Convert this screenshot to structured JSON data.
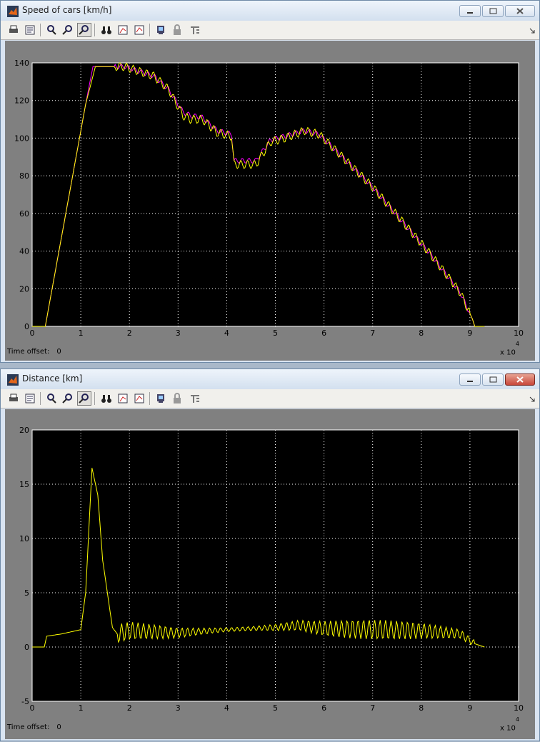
{
  "windows": [
    {
      "title": "Speed of cars [km/h]",
      "time_offset_label": "Time offset:",
      "time_offset_value": "0",
      "x_multiplier_base": "x 10",
      "x_multiplier_exp": "4"
    },
    {
      "title": "Distance [km]",
      "time_offset_label": "Time offset:",
      "time_offset_value": "0",
      "x_multiplier_base": "x 10",
      "x_multiplier_exp": "4"
    }
  ],
  "toolbar_icons": [
    "print-icon",
    "print-figure-icon",
    "zoom-in-icon",
    "zoom-x-icon",
    "zoom-y-icon",
    "binoculars-icon",
    "save-axes-icon",
    "restore-axes-icon",
    "parameters-icon",
    "lock-icon",
    "signal-selector-icon"
  ],
  "colors": {
    "plot_bg": "#000000",
    "series_yellow": "#ffff00",
    "series_magenta": "#ff00ff",
    "grid": "#ffffff"
  },
  "chart_data": [
    {
      "type": "line",
      "xlim": [
        0,
        100000
      ],
      "ylim": [
        0,
        140
      ],
      "xticks": [
        "0",
        "1",
        "2",
        "3",
        "4",
        "5",
        "6",
        "7",
        "8",
        "9",
        "10"
      ],
      "yticks": [
        "0",
        "20",
        "40",
        "60",
        "80",
        "100",
        "120",
        "140"
      ],
      "grid": true,
      "series": [
        {
          "color": "#ff00ff",
          "x": [
            0,
            2700,
            11000,
            12500,
            17500,
            19000,
            25000,
            28000,
            31000,
            32500,
            35000,
            38000,
            41000,
            41500,
            46000,
            49000,
            52000,
            56000,
            59000,
            63000,
            70000,
            76000,
            82000,
            88000,
            90500,
            91000,
            93000
          ],
          "y": [
            0,
            0,
            118,
            138,
            138,
            138,
            133,
            126,
            114,
            112,
            111,
            104,
            102,
            88,
            88,
            99,
            101,
            104,
            102,
            92,
            74,
            56,
            38,
            18,
            4,
            0,
            0
          ]
        },
        {
          "color": "#ffff00",
          "x": [
            0,
            2700,
            11000,
            13000,
            17500,
            19000,
            25000,
            28000,
            31000,
            32500,
            35000,
            38000,
            41000,
            41500,
            46000,
            49000,
            52000,
            56000,
            59000,
            63000,
            70000,
            76000,
            82000,
            88000,
            90500,
            91000,
            93000
          ],
          "y": [
            0,
            0,
            118,
            138,
            138,
            138,
            133,
            126,
            112,
            110,
            110,
            103,
            101,
            86,
            86,
            98,
            100,
            104,
            102,
            92,
            74,
            56,
            38,
            18,
            4,
            0,
            0
          ]
        }
      ]
    },
    {
      "type": "line",
      "xlim": [
        0,
        100000
      ],
      "ylim": [
        -5,
        20
      ],
      "xticks": [
        "0",
        "1",
        "2",
        "3",
        "4",
        "5",
        "6",
        "7",
        "8",
        "9",
        "10"
      ],
      "yticks": [
        "-5",
        "0",
        "5",
        "10",
        "15",
        "20"
      ],
      "grid": true,
      "series": [
        {
          "color": "#ffff00",
          "x": [
            0,
            2500,
            3000,
            6000,
            9000,
            10000,
            11000,
            12300,
            13500,
            14500,
            16500,
            17500,
            20000,
            30000,
            40000,
            50000,
            55000,
            60000,
            70000,
            80000,
            88000,
            91000,
            93000
          ],
          "y": [
            0,
            0,
            1,
            1.2,
            1.5,
            1.6,
            5,
            16.5,
            14,
            8,
            1.8,
            1.2,
            1.5,
            1.3,
            1.6,
            1.8,
            2.0,
            1.7,
            1.6,
            1.5,
            1.2,
            0.3,
            0
          ]
        }
      ]
    }
  ]
}
